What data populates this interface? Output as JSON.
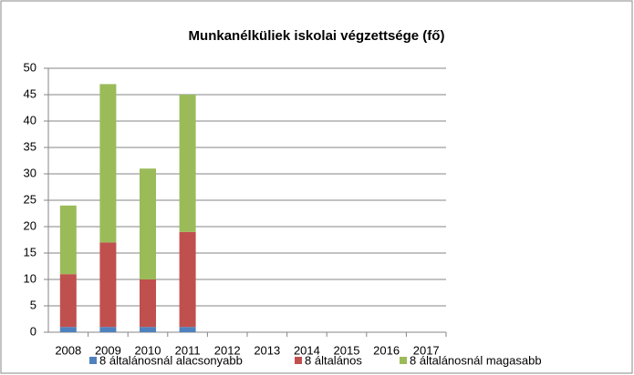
{
  "chart_data": {
    "type": "stacked_bar",
    "title": "Munkanélküliek iskolai végzettsége (fő)",
    "categories": [
      "2008",
      "2009",
      "2010",
      "2011",
      "2012",
      "2013",
      "2014",
      "2015",
      "2016",
      "2017"
    ],
    "series": [
      {
        "name": "8 általánosnál alacsonyabb",
        "color": "#4f81bd",
        "values": [
          1,
          1,
          1,
          1,
          null,
          null,
          null,
          null,
          null,
          null
        ]
      },
      {
        "name": "8 általános",
        "color": "#c0504d",
        "values": [
          10,
          16,
          9,
          18,
          null,
          null,
          null,
          null,
          null,
          null
        ]
      },
      {
        "name": "8 általánosnál magasabb",
        "color": "#9bbb59",
        "values": [
          13,
          30,
          21,
          26,
          null,
          null,
          null,
          null,
          null,
          null
        ]
      }
    ],
    "ylim": [
      0,
      50
    ],
    "yticks": [
      0,
      5,
      10,
      15,
      20,
      25,
      30,
      35,
      40,
      45,
      50
    ],
    "grid": true,
    "legend": "bottom"
  }
}
